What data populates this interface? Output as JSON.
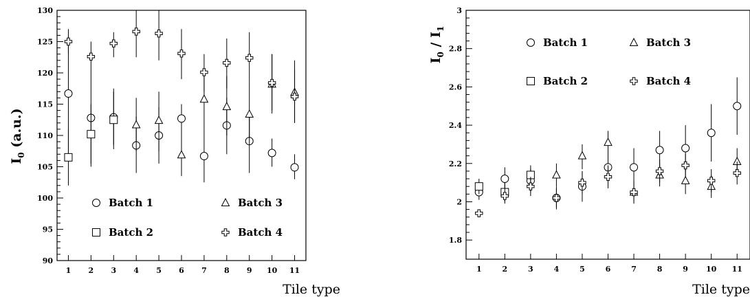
{
  "chart_data": [
    {
      "type": "scatter",
      "panel": "left",
      "xlabel": "Tile type",
      "ylabel": {
        "main": "I",
        "sub": "0",
        "tail": " (a.u.)"
      },
      "x": [
        1,
        2,
        3,
        4,
        5,
        6,
        7,
        8,
        9,
        10,
        11
      ],
      "xlim": [
        0.5,
        11.5
      ],
      "ylim": [
        90,
        130
      ],
      "yticks": [
        90,
        95,
        100,
        105,
        110,
        115,
        120,
        125,
        130
      ],
      "grid": false,
      "legend_position": "bottom",
      "series": [
        {
          "name": "Batch 1",
          "marker": "circle",
          "points": [
            {
              "x": 1,
              "y": 116.7,
              "lo": 107.0,
              "hi": 126.0
            },
            {
              "x": 2,
              "y": 112.8,
              "lo": 105.5,
              "hi": 120.0
            },
            {
              "x": 3,
              "y": 112.9,
              "lo": 108.5,
              "hi": 117.5
            },
            {
              "x": 4,
              "y": 108.4,
              "lo": 104.0,
              "hi": 113.0
            },
            {
              "x": 5,
              "y": 110.0,
              "lo": 105.5,
              "hi": 114.5
            },
            {
              "x": 6,
              "y": 112.7,
              "lo": 110.0,
              "hi": 115.0
            },
            {
              "x": 7,
              "y": 106.7,
              "lo": 102.5,
              "hi": 111.0
            },
            {
              "x": 8,
              "y": 111.6,
              "lo": 107.0,
              "hi": 116.0
            },
            {
              "x": 9,
              "y": 109.1,
              "lo": 104.0,
              "hi": 114.0
            },
            {
              "x": 10,
              "y": 107.2,
              "lo": 105.0,
              "hi": 109.5
            },
            {
              "x": 11,
              "y": 104.9,
              "lo": 103.0,
              "hi": 107.0
            }
          ]
        },
        {
          "name": "Batch 2",
          "marker": "square",
          "points": [
            {
              "x": 1,
              "y": 106.5,
              "lo": 102.0,
              "hi": 111.0
            },
            {
              "x": 2,
              "y": 110.2,
              "lo": 105.0,
              "hi": 115.0
            },
            {
              "x": 3,
              "y": 112.5,
              "lo": 107.8,
              "hi": 117.0
            }
          ]
        },
        {
          "name": "Batch 3",
          "marker": "triangle",
          "points": [
            {
              "x": 4,
              "y": 111.7,
              "lo": 107.5,
              "hi": 116.0
            },
            {
              "x": 5,
              "y": 112.4,
              "lo": 107.5,
              "hi": 117.0
            },
            {
              "x": 6,
              "y": 106.9,
              "lo": 103.5,
              "hi": 110.5
            },
            {
              "x": 7,
              "y": 115.8,
              "lo": 111.0,
              "hi": 120.5
            },
            {
              "x": 8,
              "y": 114.6,
              "lo": 110.0,
              "hi": 119.5
            },
            {
              "x": 9,
              "y": 113.4,
              "lo": 108.5,
              "hi": 118.5
            },
            {
              "x": 10,
              "y": 118.2,
              "lo": 113.5,
              "hi": 123.0
            },
            {
              "x": 11,
              "y": 116.9,
              "lo": 112.0,
              "hi": 122.0
            }
          ]
        },
        {
          "name": "Batch 4",
          "marker": "cross",
          "points": [
            {
              "x": 1,
              "y": 125.0,
              "lo": 123.0,
              "hi": 127.0
            },
            {
              "x": 2,
              "y": 122.6,
              "lo": 120.0,
              "hi": 125.0
            },
            {
              "x": 3,
              "y": 124.7,
              "lo": 122.5,
              "hi": 126.5
            },
            {
              "x": 4,
              "y": 126.6,
              "lo": 122.5,
              "hi": 130.0
            },
            {
              "x": 5,
              "y": 126.3,
              "lo": 122.0,
              "hi": 130.0
            },
            {
              "x": 6,
              "y": 123.1,
              "lo": 119.0,
              "hi": 127.0
            },
            {
              "x": 7,
              "y": 120.1,
              "lo": 117.0,
              "hi": 123.0
            },
            {
              "x": 8,
              "y": 121.6,
              "lo": 117.5,
              "hi": 125.5
            },
            {
              "x": 9,
              "y": 122.4,
              "lo": 118.5,
              "hi": 126.5
            },
            {
              "x": 10,
              "y": 118.4,
              "lo": 114.0,
              "hi": 123.0
            },
            {
              "x": 11,
              "y": 116.2,
              "lo": 112.0,
              "hi": 120.5
            }
          ]
        }
      ]
    },
    {
      "type": "scatter",
      "panel": "right",
      "xlabel": "Tile type",
      "ylabel": {
        "main": "I",
        "sub": "0",
        "mid": " / I",
        "sub2": "1"
      },
      "x": [
        1,
        2,
        3,
        4,
        5,
        6,
        7,
        8,
        9,
        10,
        11
      ],
      "xlim": [
        0.5,
        11.5
      ],
      "ylim": [
        1.7,
        3.0
      ],
      "yticks": [
        1.8,
        2,
        2.2,
        2.4,
        2.6,
        2.8,
        3
      ],
      "ytick_labels": [
        "1.8",
        "2",
        "2.2",
        "2.4",
        "2.6",
        "2.8",
        "3"
      ],
      "grid": false,
      "legend_position": "top",
      "series": [
        {
          "name": "Batch 1",
          "marker": "circle",
          "points": [
            {
              "x": 1,
              "y": 2.05,
              "lo": 2.01,
              "hi": 2.09
            },
            {
              "x": 2,
              "y": 2.12,
              "lo": 2.06,
              "hi": 2.18
            },
            {
              "x": 3,
              "y": 2.11,
              "lo": 2.05,
              "hi": 2.17
            },
            {
              "x": 4,
              "y": 2.02,
              "lo": 1.96,
              "hi": 2.08
            },
            {
              "x": 5,
              "y": 2.08,
              "lo": 2.0,
              "hi": 2.16
            },
            {
              "x": 6,
              "y": 2.18,
              "lo": 2.1,
              "hi": 2.26
            },
            {
              "x": 7,
              "y": 2.18,
              "lo": 2.08,
              "hi": 2.28
            },
            {
              "x": 8,
              "y": 2.27,
              "lo": 2.17,
              "hi": 2.37
            },
            {
              "x": 9,
              "y": 2.28,
              "lo": 2.16,
              "hi": 2.4
            },
            {
              "x": 10,
              "y": 2.36,
              "lo": 2.21,
              "hi": 2.51
            },
            {
              "x": 11,
              "y": 2.5,
              "lo": 2.35,
              "hi": 2.65
            }
          ]
        },
        {
          "name": "Batch 2",
          "marker": "square",
          "points": [
            {
              "x": 1,
              "y": 2.08,
              "lo": 2.04,
              "hi": 2.12
            },
            {
              "x": 2,
              "y": 2.05,
              "lo": 2.0,
              "hi": 2.1
            },
            {
              "x": 3,
              "y": 2.14,
              "lo": 2.08,
              "hi": 2.19
            }
          ]
        },
        {
          "name": "Batch 3",
          "marker": "triangle",
          "points": [
            {
              "x": 4,
              "y": 2.14,
              "lo": 2.08,
              "hi": 2.2
            },
            {
              "x": 5,
              "y": 2.24,
              "lo": 2.17,
              "hi": 2.3
            },
            {
              "x": 6,
              "y": 2.31,
              "lo": 2.25,
              "hi": 2.37
            },
            {
              "x": 7,
              "y": 2.05,
              "lo": 1.99,
              "hi": 2.11
            },
            {
              "x": 8,
              "y": 2.14,
              "lo": 2.08,
              "hi": 2.2
            },
            {
              "x": 9,
              "y": 2.11,
              "lo": 2.04,
              "hi": 2.18
            },
            {
              "x": 10,
              "y": 2.08,
              "lo": 2.02,
              "hi": 2.14
            },
            {
              "x": 11,
              "y": 2.21,
              "lo": 2.14,
              "hi": 2.28
            }
          ]
        },
        {
          "name": "Batch 4",
          "marker": "cross",
          "points": [
            {
              "x": 1,
              "y": 1.94,
              "lo": 1.92,
              "hi": 1.96
            },
            {
              "x": 2,
              "y": 2.03,
              "lo": 1.99,
              "hi": 2.07
            },
            {
              "x": 3,
              "y": 2.08,
              "lo": 2.03,
              "hi": 2.13
            },
            {
              "x": 4,
              "y": 2.02,
              "lo": 1.97,
              "hi": 2.07
            },
            {
              "x": 5,
              "y": 2.1,
              "lo": 2.04,
              "hi": 2.16
            },
            {
              "x": 6,
              "y": 2.13,
              "lo": 2.07,
              "hi": 2.19
            },
            {
              "x": 7,
              "y": 2.05,
              "lo": 2.0,
              "hi": 2.1
            },
            {
              "x": 8,
              "y": 2.16,
              "lo": 2.1,
              "hi": 2.22
            },
            {
              "x": 9,
              "y": 2.19,
              "lo": 2.13,
              "hi": 2.25
            },
            {
              "x": 10,
              "y": 2.11,
              "lo": 2.05,
              "hi": 2.17
            },
            {
              "x": 11,
              "y": 2.15,
              "lo": 2.09,
              "hi": 2.21
            }
          ]
        }
      ]
    }
  ]
}
